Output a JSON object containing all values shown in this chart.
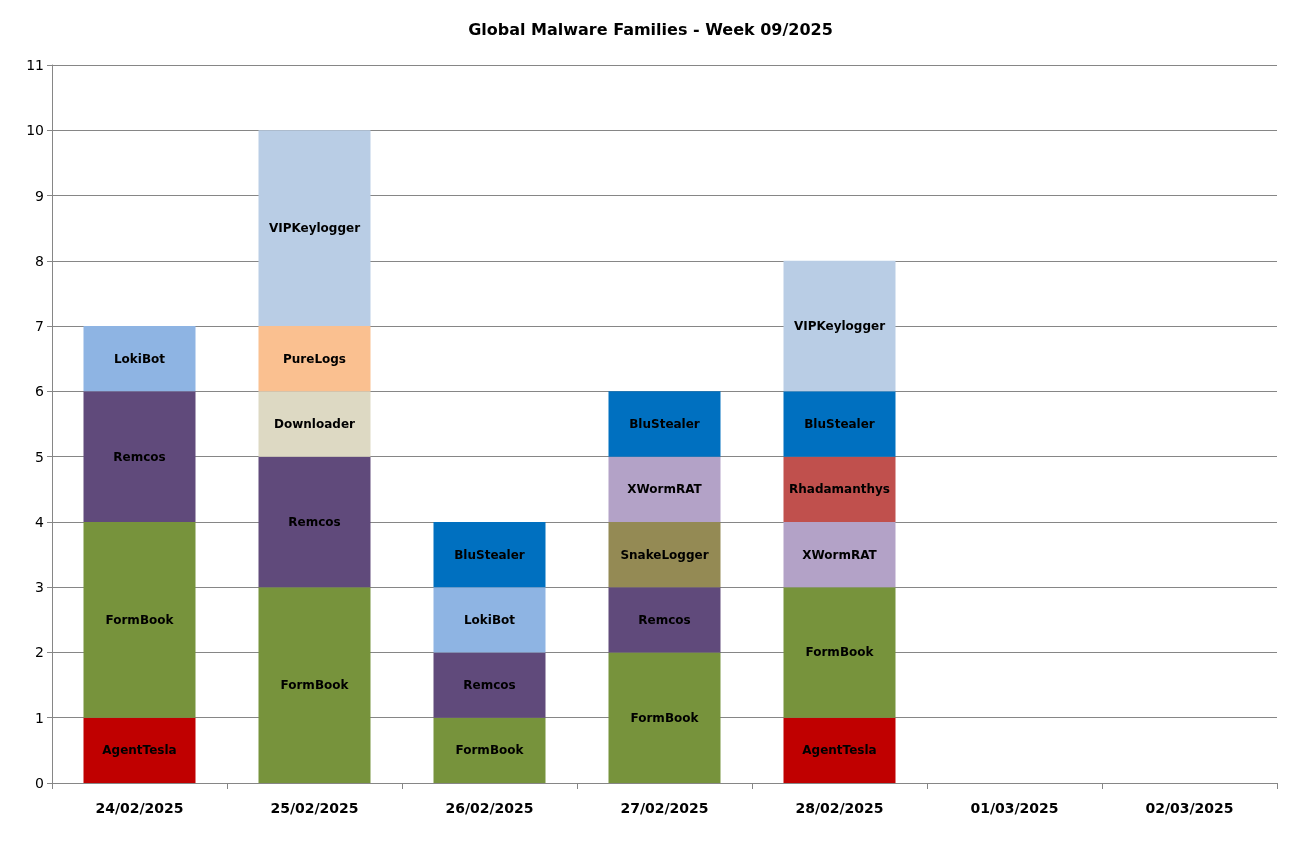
{
  "chart_data": {
    "type": "bar",
    "title": "Global Malware Families - Week 09/2025",
    "stacked": true,
    "grid": "y",
    "legend": false,
    "categories": [
      "24/02/2025",
      "25/02/2025",
      "26/02/2025",
      "27/02/2025",
      "28/02/2025",
      "01/03/2025",
      "02/03/2025"
    ],
    "ylim": [
      0,
      11
    ],
    "yticks": [
      0,
      1,
      2,
      3,
      4,
      5,
      6,
      7,
      8,
      9,
      10,
      11
    ],
    "series": [
      {
        "name": "AgentTesla",
        "color": "#c00000",
        "values": [
          1,
          null,
          null,
          null,
          1,
          null,
          null
        ]
      },
      {
        "name": "FormBook",
        "color": "#77933c",
        "values": [
          3,
          3,
          1,
          2,
          2,
          null,
          null
        ]
      },
      {
        "name": "Remcos",
        "color": "#604a7b",
        "values": [
          2,
          2,
          1,
          1,
          null,
          null,
          null
        ]
      },
      {
        "name": "LokiBot",
        "color": "#8eb4e3",
        "values": [
          1,
          null,
          1,
          null,
          null,
          null,
          null
        ]
      },
      {
        "name": "Downloader",
        "color": "#ddd9c3",
        "values": [
          null,
          1,
          null,
          null,
          null,
          null,
          null
        ]
      },
      {
        "name": "PureLogs",
        "color": "#fac090",
        "values": [
          null,
          1,
          null,
          null,
          null,
          null,
          null
        ]
      },
      {
        "name": "SnakeLogger",
        "color": "#948a54",
        "values": [
          null,
          null,
          null,
          1,
          null,
          null,
          null
        ]
      },
      {
        "name": "XWormRAT",
        "color": "#b3a2c7",
        "values": [
          null,
          null,
          null,
          1,
          1,
          null,
          null
        ]
      },
      {
        "name": "Rhadamanthys",
        "color": "#c0504d",
        "values": [
          null,
          null,
          null,
          null,
          1,
          null,
          null
        ]
      },
      {
        "name": "BluStealer",
        "color": "#0070c0",
        "values": [
          null,
          null,
          1,
          1,
          1,
          null,
          null
        ]
      },
      {
        "name": "VIPKeylogger",
        "color": "#b9cde5",
        "values": [
          null,
          3,
          null,
          null,
          2,
          null,
          null
        ]
      }
    ]
  }
}
